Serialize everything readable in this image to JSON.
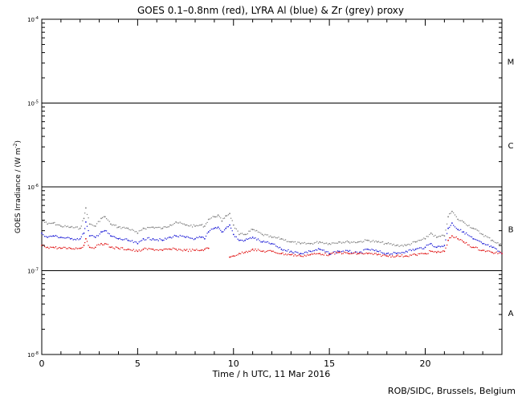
{
  "chart_data": {
    "type": "scatter",
    "title": "GOES 0.1–0.8nm (red), LYRA Al (blue) & Zr (grey) proxy",
    "xlabel": "Time / h UTC, 11 Mar 2016",
    "ylabel_main": "GOES Irradiance / (W m",
    "ylabel_sup": "-2",
    "ylabel_tail": ")",
    "x_range": [
      0,
      24
    ],
    "x_ticks": [
      0,
      5,
      10,
      15,
      20
    ],
    "x_tick_labels": [
      "0",
      "5",
      "10",
      "15",
      "20"
    ],
    "y_log": true,
    "y_range": [
      1e-08,
      0.0001
    ],
    "y_ticks": [
      1e-08,
      1e-07,
      1e-06,
      1e-05,
      0.0001
    ],
    "y_tick_labels": [
      {
        "base": "10",
        "exp": "-8"
      },
      {
        "base": "10",
        "exp": "-7"
      },
      {
        "base": "10",
        "exp": "-6"
      },
      {
        "base": "10",
        "exp": "-5"
      },
      {
        "base": "10",
        "exp": "-4"
      }
    ],
    "class_lines": [
      1e-07,
      1e-06,
      1e-05
    ],
    "flare_classes": [
      {
        "label": "A",
        "y": 3.16e-08
      },
      {
        "label": "B",
        "y": 3.16e-07
      },
      {
        "label": "C",
        "y": 3.16e-06
      },
      {
        "label": "M",
        "y": 3.16e-05
      }
    ],
    "series": [
      {
        "color": "#7f7f7f",
        "x": [
          0,
          0.3,
          0.6,
          1,
          1.5,
          2,
          2.2,
          2.3,
          2.5,
          2.8,
          3.1,
          3.3,
          3.6,
          4,
          4.5,
          5,
          5.3,
          5.8,
          6.3,
          6.7,
          7,
          7.5,
          8,
          8.3,
          8.5,
          8.7,
          9,
          9.2,
          9.4,
          9.6,
          9.8,
          10,
          10.3,
          10.6,
          11,
          11.5,
          12,
          12.5,
          13,
          13.5,
          14,
          14.5,
          15,
          15.5,
          16,
          16.5,
          17,
          17.5,
          18,
          18.5,
          19,
          19.5,
          20,
          20.3,
          20.6,
          21,
          21.2,
          21.4,
          21.7,
          22,
          22.5,
          23,
          23.5,
          24
        ],
        "y": [
          4e-07,
          3.6e-07,
          3.7e-07,
          3.4e-07,
          3.3e-07,
          3.2e-07,
          4.2e-07,
          5.6e-07,
          3.6e-07,
          3.4e-07,
          4.2e-07,
          4.4e-07,
          3.6e-07,
          3.3e-07,
          3.2e-07,
          2.8e-07,
          3.2e-07,
          3.3e-07,
          3.2e-07,
          3.5e-07,
          3.8e-07,
          3.5e-07,
          3.4e-07,
          3.5e-07,
          3.4e-07,
          4.1e-07,
          4.4e-07,
          4.6e-07,
          3.9e-07,
          4.5e-07,
          4.8e-07,
          3.5e-07,
          2.7e-07,
          2.7e-07,
          3.1e-07,
          2.7e-07,
          2.5e-07,
          2.4e-07,
          2.2e-07,
          2.1e-07,
          2.1e-07,
          2.2e-07,
          2.1e-07,
          2.2e-07,
          2.2e-07,
          2.2e-07,
          2.3e-07,
          2.2e-07,
          2.1e-07,
          2e-07,
          2e-07,
          2.2e-07,
          2.4e-07,
          2.8e-07,
          2.5e-07,
          2.6e-07,
          4.4e-07,
          5.1e-07,
          4.1e-07,
          3.8e-07,
          3.2e-07,
          2.7e-07,
          2.3e-07,
          2e-07
        ]
      },
      {
        "color": "#1a1ad6",
        "x": [
          0,
          0.3,
          0.6,
          1,
          1.5,
          2,
          2.2,
          2.3,
          2.5,
          2.8,
          3.1,
          3.3,
          3.6,
          4,
          4.5,
          5,
          5.3,
          5.8,
          6.3,
          6.7,
          7,
          7.5,
          8,
          8.3,
          8.5,
          8.7,
          9,
          9.2,
          9.4,
          9.6,
          9.8,
          10,
          10.3,
          10.6,
          11,
          11.5,
          12,
          12.5,
          13,
          13.5,
          14,
          14.5,
          15,
          15.5,
          16,
          16.5,
          17,
          17.5,
          18,
          18.5,
          19,
          19.5,
          20,
          20.3,
          20.6,
          21,
          21.2,
          21.4,
          21.7,
          22,
          22.5,
          23,
          23.5,
          24
        ],
        "y": [
          2.8e-07,
          2.5e-07,
          2.6e-07,
          2.5e-07,
          2.4e-07,
          2.4e-07,
          2.8e-07,
          3.8e-07,
          2.6e-07,
          2.5e-07,
          2.9e-07,
          3e-07,
          2.6e-07,
          2.4e-07,
          2.3e-07,
          2.1e-07,
          2.4e-07,
          2.4e-07,
          2.3e-07,
          2.5e-07,
          2.6e-07,
          2.5e-07,
          2.4e-07,
          2.5e-07,
          2.4e-07,
          2.9e-07,
          3.2e-07,
          3.3e-07,
          2.9e-07,
          3.2e-07,
          3.5e-07,
          2.7e-07,
          2.3e-07,
          2.3e-07,
          2.5e-07,
          2.2e-07,
          2.1e-07,
          1.8e-07,
          1.7e-07,
          1.6e-07,
          1.7e-07,
          1.8e-07,
          1.6e-07,
          1.7e-07,
          1.7e-07,
          1.6e-07,
          1.8e-07,
          1.7e-07,
          1.6e-07,
          1.6e-07,
          1.7e-07,
          1.8e-07,
          1.9e-07,
          2.1e-07,
          1.9e-07,
          2e-07,
          3.2e-07,
          3.7e-07,
          3.1e-07,
          2.9e-07,
          2.4e-07,
          2.1e-07,
          1.9e-07,
          1.6e-07
        ]
      },
      {
        "color": "#e01010",
        "x": [
          0,
          0.3,
          0.6,
          1,
          1.5,
          2,
          2.2,
          2.3,
          2.5,
          2.8,
          3.1,
          3.3,
          3.6,
          4,
          4.5,
          5,
          5.3,
          5.8,
          6.3,
          6.7,
          7,
          7.5,
          8,
          8.3,
          8.5,
          8.7,
          9.8,
          10,
          10.3,
          10.6,
          11,
          11.5,
          12,
          12.5,
          13,
          13.5,
          14,
          14.5,
          15,
          15.5,
          16,
          16.5,
          17,
          17.5,
          18,
          18.5,
          19,
          19.5,
          20,
          20.3,
          20.6,
          21,
          21.2,
          21.4,
          21.7,
          22,
          22.5,
          23,
          23.5,
          24
        ],
        "y": [
          2e-07,
          1.9e-07,
          1.9e-07,
          1.85e-07,
          1.85e-07,
          1.85e-07,
          2e-07,
          2.4e-07,
          1.9e-07,
          1.9e-07,
          2.1e-07,
          2.1e-07,
          1.9e-07,
          1.85e-07,
          1.8e-07,
          1.7e-07,
          1.8e-07,
          1.8e-07,
          1.75e-07,
          1.8e-07,
          1.8e-07,
          1.75e-07,
          1.75e-07,
          1.75e-07,
          1.8e-07,
          1.85e-07,
          1.45e-07,
          1.5e-07,
          1.6e-07,
          1.65e-07,
          1.8e-07,
          1.7e-07,
          1.7e-07,
          1.6e-07,
          1.55e-07,
          1.5e-07,
          1.55e-07,
          1.6e-07,
          1.55e-07,
          1.65e-07,
          1.6e-07,
          1.6e-07,
          1.6e-07,
          1.55e-07,
          1.5e-07,
          1.5e-07,
          1.5e-07,
          1.55e-07,
          1.6e-07,
          1.7e-07,
          1.65e-07,
          1.7e-07,
          2.3e-07,
          2.6e-07,
          2.4e-07,
          2.2e-07,
          1.9e-07,
          1.75e-07,
          1.65e-07,
          1.6e-07
        ]
      }
    ]
  },
  "footer": "ROB/SIDC, Brussels, Belgium"
}
